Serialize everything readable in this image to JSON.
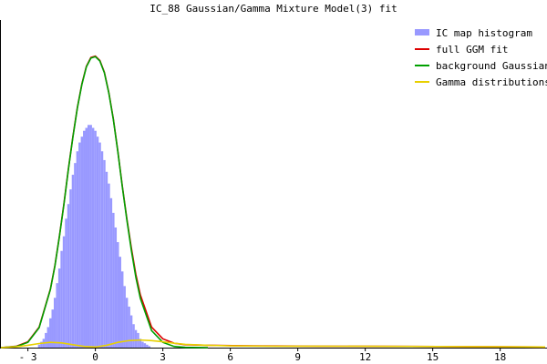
{
  "chart_data": {
    "type": "area",
    "title": "IC_88 Gaussian/Gamma Mixture Model(3) fit",
    "xlim": [
      -4.2,
      20.0
    ],
    "ylim": [
      0,
      1.0
    ],
    "x_ticks": [
      -3,
      0,
      3,
      6,
      9,
      12,
      15,
      18
    ],
    "x_tick_labels": [
      "- 3",
      "0",
      "3",
      "6",
      "9",
      "12",
      "15",
      "18"
    ],
    "grid": false,
    "legend_position": "top-right",
    "series": [
      {
        "name": "IC map histogram",
        "kind": "histogram",
        "color": "#9999ff",
        "bin_width": 0.1,
        "x": [
          -2.6,
          -2.5,
          -2.4,
          -2.3,
          -2.2,
          -2.1,
          -2.0,
          -1.9,
          -1.8,
          -1.7,
          -1.6,
          -1.5,
          -1.4,
          -1.3,
          -1.2,
          -1.1,
          -1.0,
          -0.9,
          -0.8,
          -0.7,
          -0.6,
          -0.5,
          -0.4,
          -0.3,
          -0.2,
          -0.1,
          0.0,
          0.1,
          0.2,
          0.3,
          0.4,
          0.5,
          0.6,
          0.7,
          0.8,
          0.9,
          1.0,
          1.1,
          1.2,
          1.3,
          1.4,
          1.5,
          1.6,
          1.7,
          1.8,
          1.9,
          2.0,
          2.1,
          2.2,
          2.3,
          2.4,
          2.5
        ],
        "values": [
          0.0,
          0.01,
          0.02,
          0.03,
          0.05,
          0.07,
          0.1,
          0.13,
          0.17,
          0.22,
          0.27,
          0.33,
          0.38,
          0.44,
          0.49,
          0.54,
          0.59,
          0.63,
          0.67,
          0.7,
          0.72,
          0.74,
          0.75,
          0.76,
          0.76,
          0.75,
          0.74,
          0.72,
          0.7,
          0.67,
          0.64,
          0.6,
          0.56,
          0.51,
          0.46,
          0.41,
          0.36,
          0.31,
          0.26,
          0.21,
          0.17,
          0.14,
          0.11,
          0.08,
          0.06,
          0.05,
          0.03,
          0.02,
          0.015,
          0.01,
          0.005,
          0.0
        ]
      },
      {
        "name": "full GGM fit",
        "kind": "line",
        "color": "#dd0000",
        "x": [
          -4.2,
          -3.5,
          -3.0,
          -2.5,
          -2.0,
          -1.8,
          -1.6,
          -1.4,
          -1.2,
          -1.0,
          -0.8,
          -0.6,
          -0.4,
          -0.2,
          0.0,
          0.2,
          0.4,
          0.6,
          0.8,
          1.0,
          1.2,
          1.4,
          1.6,
          1.8,
          2.0,
          2.5,
          3.0,
          3.5,
          4.0,
          5.0,
          7.0,
          10.0,
          14.0,
          18.0,
          20.0
        ],
        "values": [
          0.0,
          0.005,
          0.02,
          0.07,
          0.2,
          0.28,
          0.38,
          0.49,
          0.61,
          0.72,
          0.82,
          0.9,
          0.96,
          0.99,
          0.995,
          0.98,
          0.94,
          0.87,
          0.78,
          0.67,
          0.55,
          0.44,
          0.34,
          0.25,
          0.18,
          0.07,
          0.03,
          0.015,
          0.01,
          0.008,
          0.006,
          0.005,
          0.004,
          0.003,
          0.002
        ]
      },
      {
        "name": "background Gaussian",
        "kind": "line",
        "color": "#00a000",
        "x": [
          -4.2,
          -3.5,
          -3.0,
          -2.5,
          -2.0,
          -1.8,
          -1.6,
          -1.4,
          -1.2,
          -1.0,
          -0.8,
          -0.6,
          -0.4,
          -0.2,
          0.0,
          0.2,
          0.4,
          0.6,
          0.8,
          1.0,
          1.2,
          1.4,
          1.6,
          1.8,
          2.0,
          2.5,
          3.0,
          3.5,
          4.0,
          5.0
        ],
        "values": [
          0.0,
          0.004,
          0.018,
          0.068,
          0.198,
          0.278,
          0.378,
          0.488,
          0.608,
          0.718,
          0.818,
          0.898,
          0.958,
          0.988,
          0.993,
          0.978,
          0.938,
          0.868,
          0.778,
          0.668,
          0.548,
          0.436,
          0.332,
          0.24,
          0.168,
          0.058,
          0.018,
          0.004,
          0.001,
          0.0
        ]
      },
      {
        "name": "Gamma distributions",
        "kind": "line",
        "color": "#e8d000",
        "x": [
          -4.2,
          -3.5,
          -3.0,
          -2.5,
          -2.0,
          -1.5,
          -1.0,
          -0.5,
          0.0,
          0.5,
          1.0,
          1.5,
          2.0,
          2.5,
          3.0,
          3.5,
          4.0,
          5.0,
          6.0,
          8.0,
          10.0,
          14.0,
          18.0,
          20.0
        ],
        "values": [
          0.0,
          0.003,
          0.008,
          0.014,
          0.018,
          0.016,
          0.01,
          0.004,
          0.002,
          0.008,
          0.018,
          0.024,
          0.026,
          0.024,
          0.02,
          0.015,
          0.011,
          0.008,
          0.006,
          0.005,
          0.005,
          0.004,
          0.003,
          0.002
        ]
      }
    ]
  }
}
